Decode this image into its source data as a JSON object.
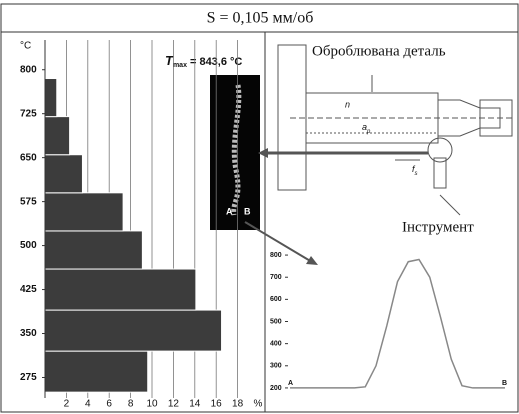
{
  "figure": {
    "title": "S = 0,105 мм/об",
    "workpiece_label": "Оброблювана деталь",
    "tool_label": "Інструмент",
    "rotation_label": "n",
    "depth_label": "a",
    "depth_subscript": "p",
    "feed_label": "f",
    "feed_subscript": "s",
    "thermal_point_a": "A",
    "thermal_point_b": "B"
  },
  "chart_data": [
    {
      "type": "hbar-histogram",
      "y_label": "°C",
      "x_label": "%",
      "annotation": {
        "symbol": "T",
        "subscript": "max",
        "text": "= 843,6 °C"
      },
      "bins": [
        250,
        320,
        390,
        460,
        525,
        590,
        655,
        720,
        785
      ],
      "values": [
        9.6,
        16.5,
        14.1,
        9.1,
        7.3,
        3.5,
        2.3,
        1.1
      ],
      "color": "#3c3c3c",
      "xlim": [
        0,
        20
      ],
      "xticks": [
        2,
        4,
        6,
        8,
        10,
        12,
        14,
        16,
        18
      ],
      "ylim": [
        240,
        820
      ],
      "yticks": [
        275,
        350,
        425,
        500,
        575,
        650,
        725,
        800
      ],
      "grid": true
    },
    {
      "type": "line",
      "categories": [
        "A",
        null,
        null,
        null,
        null,
        null,
        null,
        null,
        null,
        null,
        null,
        null,
        null,
        null,
        null,
        null,
        null,
        null,
        null,
        null,
        "B"
      ],
      "values": [
        200,
        200,
        200,
        200,
        200,
        200,
        200,
        205,
        300,
        480,
        680,
        770,
        780,
        700,
        520,
        330,
        210,
        200,
        200,
        200,
        200
      ],
      "color": "#888888",
      "ylim": [
        150,
        850
      ],
      "yticks": [
        200,
        300,
        400,
        500,
        600,
        700,
        800
      ]
    }
  ]
}
